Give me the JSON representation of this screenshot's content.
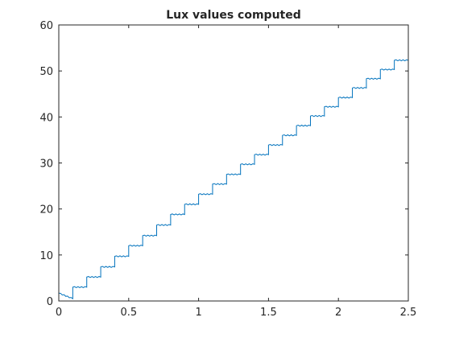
{
  "chart_data": {
    "type": "line",
    "title": "Lux values computed",
    "xlabel": "",
    "ylabel": "",
    "xlim": [
      0,
      2.5
    ],
    "ylim": [
      0,
      60
    ],
    "xticks": [
      "0",
      "0.5",
      "1",
      "1.5",
      "2",
      "2.5"
    ],
    "yticks": [
      "0",
      "10",
      "20",
      "30",
      "40",
      "50",
      "60"
    ],
    "grid": false,
    "line_color": "#0072BD",
    "series": [
      {
        "steps": [
          {
            "x0": 0.0,
            "x1": 0.1,
            "y0": 1.7,
            "y1": 0.5
          },
          {
            "x0": 0.1,
            "x1": 0.2,
            "y": 3.0
          },
          {
            "x0": 0.2,
            "x1": 0.3,
            "y": 5.2
          },
          {
            "x0": 0.3,
            "x1": 0.4,
            "y": 7.4
          },
          {
            "x0": 0.4,
            "x1": 0.5,
            "y": 9.7
          },
          {
            "x0": 0.5,
            "x1": 0.6,
            "y": 12.0
          },
          {
            "x0": 0.6,
            "x1": 0.7,
            "y": 14.2
          },
          {
            "x0": 0.7,
            "x1": 0.8,
            "y": 16.5
          },
          {
            "x0": 0.8,
            "x1": 0.9,
            "y": 18.8
          },
          {
            "x0": 0.9,
            "x1": 1.0,
            "y": 21.0
          },
          {
            "x0": 1.0,
            "x1": 1.1,
            "y": 23.2
          },
          {
            "x0": 1.1,
            "x1": 1.2,
            "y": 25.4
          },
          {
            "x0": 1.2,
            "x1": 1.3,
            "y": 27.5
          },
          {
            "x0": 1.3,
            "x1": 1.4,
            "y": 29.7
          },
          {
            "x0": 1.4,
            "x1": 1.5,
            "y": 31.8
          },
          {
            "x0": 1.5,
            "x1": 1.6,
            "y": 33.9
          },
          {
            "x0": 1.6,
            "x1": 1.7,
            "y": 36.0
          },
          {
            "x0": 1.7,
            "x1": 1.8,
            "y": 38.1
          },
          {
            "x0": 1.8,
            "x1": 1.9,
            "y": 40.2
          },
          {
            "x0": 1.9,
            "x1": 2.0,
            "y": 42.2
          },
          {
            "x0": 2.0,
            "x1": 2.1,
            "y": 44.2
          },
          {
            "x0": 2.1,
            "x1": 2.2,
            "y": 46.3
          },
          {
            "x0": 2.2,
            "x1": 2.3,
            "y": 48.3
          },
          {
            "x0": 2.3,
            "x1": 2.4,
            "y": 50.3
          },
          {
            "x0": 2.4,
            "x1": 2.5,
            "y": 52.3
          },
          {
            "x0": 2.5,
            "x1": 2.5,
            "y": 54.3
          }
        ]
      }
    ]
  }
}
